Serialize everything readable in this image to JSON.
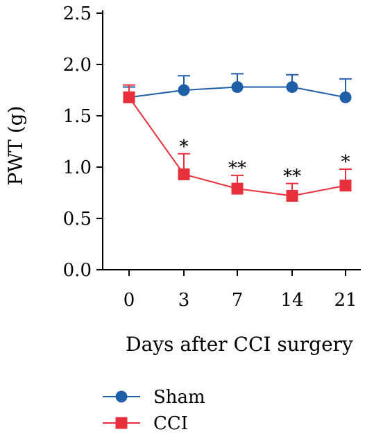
{
  "chart_data": {
    "type": "line",
    "categories": [
      "0",
      "3",
      "7",
      "14",
      "21"
    ],
    "xlabel": "Days after CCI surgery",
    "ylabel": "PWT (g)",
    "ylim": [
      0,
      2.5
    ],
    "yticks": [
      "0.0",
      "0.5",
      "1.0",
      "1.5",
      "2.0",
      "2.5"
    ],
    "series": [
      {
        "name": "Sham",
        "color": "#1f5fa8",
        "marker": "circle",
        "values": [
          1.68,
          1.75,
          1.78,
          1.78,
          1.68
        ],
        "error": [
          0.1,
          0.14,
          0.13,
          0.12,
          0.18
        ]
      },
      {
        "name": "CCI",
        "color": "#e8303c",
        "marker": "square",
        "values": [
          1.68,
          0.93,
          0.79,
          0.72,
          0.82
        ],
        "error": [
          0.12,
          0.2,
          0.13,
          0.12,
          0.16
        ]
      }
    ],
    "annotations": [
      "",
      "*",
      "**",
      "**",
      "*"
    ],
    "legend": "bottom"
  }
}
